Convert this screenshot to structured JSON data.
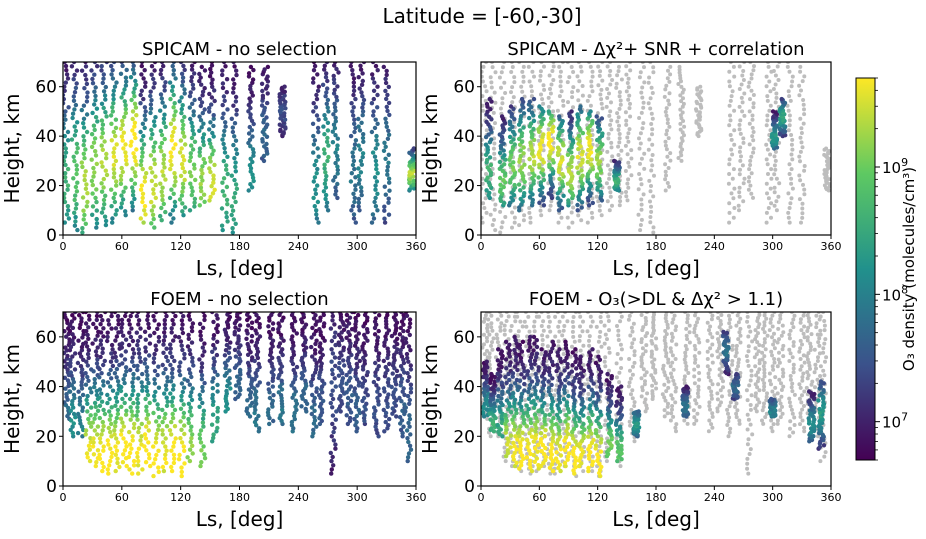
{
  "suptitle": "Latitude = [-60,-30]",
  "colorbar": {
    "label": "O₃ density (molecules/cm³)",
    "scale": "log",
    "range": [
      5000000.0,
      5000000000.0
    ],
    "tick_labels": [
      {
        "base": "10",
        "exp": "9",
        "value": 1000000000.0
      },
      {
        "base": "10",
        "exp": "8",
        "value": 100000000.0
      },
      {
        "base": "10",
        "exp": "7",
        "value": 10000000.0
      }
    ],
    "colormap": "viridis",
    "colors": [
      "#440154",
      "#3b528b",
      "#21918c",
      "#5ec962",
      "#fde725"
    ]
  },
  "chart_data": [
    {
      "type": "scatter",
      "title": "SPICAM - no selection",
      "xlabel": "Ls, [deg]",
      "ylabel": "Height, km",
      "xlim": [
        0,
        360
      ],
      "ylim": [
        0,
        70
      ],
      "xticks": [
        "0",
        "60",
        "120",
        "180",
        "240",
        "300",
        "360"
      ],
      "yticks": [
        "0",
        "20",
        "40",
        "60"
      ],
      "grey_points": false,
      "profiles": [
        {
          "ls": 3,
          "top": 70,
          "bottom": 5,
          "peak": 22,
          "level": 0.6
        },
        {
          "ls": 12,
          "top": 70,
          "bottom": 2,
          "peak": 25,
          "level": 0.7
        },
        {
          "ls": 22,
          "top": 70,
          "bottom": 1,
          "peak": 20,
          "level": 0.85
        },
        {
          "ls": 32,
          "top": 70,
          "bottom": 3,
          "peak": 28,
          "level": 0.8
        },
        {
          "ls": 42,
          "top": 70,
          "bottom": 4,
          "peak": 30,
          "level": 0.85
        },
        {
          "ls": 52,
          "top": 70,
          "bottom": 5,
          "peak": 32,
          "level": 0.9
        },
        {
          "ls": 62,
          "top": 70,
          "bottom": 8,
          "peak": 35,
          "level": 0.95
        },
        {
          "ls": 72,
          "top": 70,
          "bottom": 10,
          "peak": 38,
          "level": 1.0
        },
        {
          "ls": 82,
          "top": 70,
          "bottom": 5,
          "peak": 15,
          "level": 0.95
        },
        {
          "ls": 92,
          "top": 70,
          "bottom": 3,
          "peak": 20,
          "level": 0.9
        },
        {
          "ls": 102,
          "top": 70,
          "bottom": 6,
          "peak": 25,
          "level": 0.85
        },
        {
          "ls": 112,
          "top": 70,
          "bottom": 5,
          "peak": 35,
          "level": 0.95
        },
        {
          "ls": 122,
          "top": 70,
          "bottom": 8,
          "peak": 30,
          "level": 0.9
        },
        {
          "ls": 132,
          "top": 70,
          "bottom": 10,
          "peak": 25,
          "level": 0.75
        },
        {
          "ls": 142,
          "top": 68,
          "bottom": 12,
          "peak": 22,
          "level": 0.8
        },
        {
          "ls": 152,
          "top": 70,
          "bottom": 14,
          "peak": 20,
          "level": 0.9
        },
        {
          "ls": 165,
          "top": 70,
          "bottom": 2,
          "peak": 18,
          "level": 0.6
        },
        {
          "ls": 175,
          "top": 70,
          "bottom": 1,
          "peak": 15,
          "level": 0.55
        },
        {
          "ls": 192,
          "top": 68,
          "bottom": 18,
          "peak": 25,
          "level": 0.45
        },
        {
          "ls": 206,
          "top": 68,
          "bottom": 30,
          "peak": 40,
          "level": 0.3
        },
        {
          "ls": 224,
          "top": 60,
          "bottom": 40,
          "peak": 50,
          "level": 0.2
        },
        {
          "ls": 258,
          "top": 70,
          "bottom": 5,
          "peak": 20,
          "level": 0.45
        },
        {
          "ls": 268,
          "top": 70,
          "bottom": 10,
          "peak": 30,
          "level": 0.6
        },
        {
          "ls": 278,
          "top": 70,
          "bottom": 15,
          "peak": 35,
          "level": 0.4
        },
        {
          "ls": 296,
          "top": 70,
          "bottom": 5,
          "peak": 25,
          "level": 0.35
        },
        {
          "ls": 304,
          "top": 70,
          "bottom": 10,
          "peak": 30,
          "level": 0.4
        },
        {
          "ls": 318,
          "top": 70,
          "bottom": 5,
          "peak": 25,
          "level": 0.45
        },
        {
          "ls": 330,
          "top": 68,
          "bottom": 5,
          "peak": 30,
          "level": 0.35
        },
        {
          "ls": 356,
          "top": 35,
          "bottom": 18,
          "peak": 25,
          "level": 0.85
        }
      ]
    },
    {
      "type": "scatter",
      "title": "SPICAM - Δχ²+ SNR + correlation",
      "xlabel": "Ls, [deg]",
      "ylabel": "Height, km",
      "xlim": [
        0,
        360
      ],
      "ylim": [
        0,
        70
      ],
      "xticks": [
        "0",
        "60",
        "120",
        "180",
        "240",
        "300",
        "360"
      ],
      "yticks": [
        "0",
        "20",
        "40",
        "60"
      ],
      "grey_points": true,
      "profiles": [
        {
          "ls": 8,
          "top": 55,
          "bottom": 15,
          "peak": 25,
          "level": 0.6
        },
        {
          "ls": 22,
          "top": 48,
          "bottom": 12,
          "peak": 22,
          "level": 0.7
        },
        {
          "ls": 32,
          "top": 52,
          "bottom": 12,
          "peak": 28,
          "level": 0.75
        },
        {
          "ls": 42,
          "top": 55,
          "bottom": 10,
          "peak": 30,
          "level": 0.8
        },
        {
          "ls": 52,
          "top": 55,
          "bottom": 12,
          "peak": 32,
          "level": 0.85
        },
        {
          "ls": 62,
          "top": 52,
          "bottom": 12,
          "peak": 35,
          "level": 0.95
        },
        {
          "ls": 72,
          "top": 50,
          "bottom": 15,
          "peak": 38,
          "level": 1.0
        },
        {
          "ls": 82,
          "top": 48,
          "bottom": 10,
          "peak": 30,
          "level": 0.9
        },
        {
          "ls": 92,
          "top": 50,
          "bottom": 12,
          "peak": 25,
          "level": 0.85
        },
        {
          "ls": 102,
          "top": 52,
          "bottom": 10,
          "peak": 32,
          "level": 0.9
        },
        {
          "ls": 112,
          "top": 50,
          "bottom": 12,
          "peak": 35,
          "level": 0.95
        },
        {
          "ls": 122,
          "top": 48,
          "bottom": 14,
          "peak": 30,
          "level": 0.8
        },
        {
          "ls": 140,
          "top": 30,
          "bottom": 18,
          "peak": 22,
          "level": 0.6
        },
        {
          "ls": 302,
          "top": 50,
          "bottom": 35,
          "peak": 40,
          "level": 0.5
        },
        {
          "ls": 310,
          "top": 55,
          "bottom": 40,
          "peak": 48,
          "level": 0.55
        }
      ]
    },
    {
      "type": "scatter",
      "title": "FOEM - no selection",
      "xlabel": "Ls, [deg]",
      "ylabel": "Height, km",
      "xlim": [
        0,
        360
      ],
      "ylim": [
        0,
        70
      ],
      "xticks": [
        "0",
        "60",
        "120",
        "180",
        "240",
        "300",
        "360"
      ],
      "yticks": [
        "0",
        "20",
        "40",
        "60"
      ],
      "grey_points": false,
      "profiles": [
        {
          "ls": 4,
          "top": 70,
          "bottom": 27,
          "peak": 30,
          "level": 0.3
        },
        {
          "ls": 10,
          "top": 70,
          "bottom": 20,
          "peak": 25,
          "level": 0.45
        },
        {
          "ls": 18,
          "top": 70,
          "bottom": 20,
          "peak": 24,
          "level": 0.4
        },
        {
          "ls": 26,
          "top": 70,
          "bottom": 10,
          "peak": 12,
          "level": 0.95
        },
        {
          "ls": 33,
          "top": 70,
          "bottom": 8,
          "peak": 12,
          "level": 0.95
        },
        {
          "ls": 40,
          "top": 70,
          "bottom": 6,
          "peak": 10,
          "level": 1.0
        },
        {
          "ls": 48,
          "top": 70,
          "bottom": 5,
          "peak": 10,
          "level": 1.0
        },
        {
          "ls": 55,
          "top": 70,
          "bottom": 6,
          "peak": 12,
          "level": 0.95
        },
        {
          "ls": 62,
          "top": 70,
          "bottom": 8,
          "peak": 14,
          "level": 1.0
        },
        {
          "ls": 70,
          "top": 70,
          "bottom": 5,
          "peak": 12,
          "level": 1.0
        },
        {
          "ls": 78,
          "top": 70,
          "bottom": 5,
          "peak": 12,
          "level": 0.95
        },
        {
          "ls": 86,
          "top": 70,
          "bottom": 8,
          "peak": 14,
          "level": 1.0
        },
        {
          "ls": 95,
          "top": 70,
          "bottom": 4,
          "peak": 10,
          "level": 1.0
        },
        {
          "ls": 104,
          "top": 70,
          "bottom": 6,
          "peak": 12,
          "level": 0.95
        },
        {
          "ls": 112,
          "top": 70,
          "bottom": 6,
          "peak": 12,
          "level": 1.0
        },
        {
          "ls": 121,
          "top": 70,
          "bottom": 4,
          "peak": 10,
          "level": 1.0
        },
        {
          "ls": 130,
          "top": 70,
          "bottom": 10,
          "peak": 14,
          "level": 0.8
        },
        {
          "ls": 142,
          "top": 70,
          "bottom": 8,
          "peak": 12,
          "level": 0.75
        },
        {
          "ls": 155,
          "top": 70,
          "bottom": 18,
          "peak": 25,
          "level": 0.55
        },
        {
          "ls": 168,
          "top": 70,
          "bottom": 30,
          "peak": 35,
          "level": 0.45
        },
        {
          "ls": 178,
          "top": 70,
          "bottom": 35,
          "peak": 40,
          "level": 0.3
        },
        {
          "ls": 190,
          "top": 70,
          "bottom": 28,
          "peak": 32,
          "level": 0.3
        },
        {
          "ls": 198,
          "top": 70,
          "bottom": 22,
          "peak": 28,
          "level": 0.35
        },
        {
          "ls": 212,
          "top": 70,
          "bottom": 25,
          "peak": 30,
          "level": 0.3
        },
        {
          "ls": 222,
          "top": 70,
          "bottom": 25,
          "peak": 30,
          "level": 0.35
        },
        {
          "ls": 236,
          "top": 70,
          "bottom": 22,
          "peak": 28,
          "level": 0.35
        },
        {
          "ls": 246,
          "top": 70,
          "bottom": 30,
          "peak": 35,
          "level": 0.3
        },
        {
          "ls": 256,
          "top": 70,
          "bottom": 20,
          "peak": 25,
          "level": 0.3
        },
        {
          "ls": 264,
          "top": 70,
          "bottom": 25,
          "peak": 30,
          "level": 0.25
        },
        {
          "ls": 276,
          "top": 70,
          "bottom": 5,
          "peak": 40,
          "level": 0.2
        },
        {
          "ls": 284,
          "top": 70,
          "bottom": 30,
          "peak": 40,
          "level": 0.2
        },
        {
          "ls": 292,
          "top": 70,
          "bottom": 25,
          "peak": 35,
          "level": 0.25
        },
        {
          "ls": 300,
          "top": 70,
          "bottom": 22,
          "peak": 30,
          "level": 0.25
        },
        {
          "ls": 308,
          "top": 70,
          "bottom": 25,
          "peak": 32,
          "level": 0.2
        },
        {
          "ls": 320,
          "top": 70,
          "bottom": 20,
          "peak": 30,
          "level": 0.2
        },
        {
          "ls": 330,
          "top": 70,
          "bottom": 22,
          "peak": 32,
          "level": 0.2
        },
        {
          "ls": 338,
          "top": 70,
          "bottom": 28,
          "peak": 35,
          "level": 0.2
        },
        {
          "ls": 346,
          "top": 70,
          "bottom": 20,
          "peak": 30,
          "level": 0.25
        },
        {
          "ls": 352,
          "top": 70,
          "bottom": 10,
          "peak": 20,
          "level": 0.3
        }
      ]
    },
    {
      "type": "scatter",
      "title": "FOEM - O₃(>DL & Δχ² > 1.1)",
      "xlabel": "Ls, [deg]",
      "ylabel": "Height, km",
      "xlim": [
        0,
        360
      ],
      "ylim": [
        0,
        70
      ],
      "xticks": [
        "0",
        "60",
        "120",
        "180",
        "240",
        "300",
        "360"
      ],
      "yticks": [
        "0",
        "20",
        "40",
        "60"
      ],
      "grey_points": true,
      "profiles": [
        {
          "ls": 5,
          "top": 50,
          "bottom": 28,
          "peak": 32,
          "level": 0.45
        },
        {
          "ls": 12,
          "top": 45,
          "bottom": 22,
          "peak": 25,
          "level": 0.6
        },
        {
          "ls": 20,
          "top": 55,
          "bottom": 20,
          "peak": 24,
          "level": 0.55
        },
        {
          "ls": 28,
          "top": 58,
          "bottom": 12,
          "peak": 16,
          "level": 0.9
        },
        {
          "ls": 35,
          "top": 60,
          "bottom": 8,
          "peak": 14,
          "level": 0.95
        },
        {
          "ls": 42,
          "top": 58,
          "bottom": 7,
          "peak": 12,
          "level": 1.0
        },
        {
          "ls": 50,
          "top": 60,
          "bottom": 6,
          "peak": 12,
          "level": 1.0
        },
        {
          "ls": 57,
          "top": 60,
          "bottom": 7,
          "peak": 14,
          "level": 0.95
        },
        {
          "ls": 64,
          "top": 55,
          "bottom": 8,
          "peak": 14,
          "level": 1.0
        },
        {
          "ls": 72,
          "top": 58,
          "bottom": 6,
          "peak": 12,
          "level": 1.0
        },
        {
          "ls": 80,
          "top": 55,
          "bottom": 6,
          "peak": 12,
          "level": 0.95
        },
        {
          "ls": 88,
          "top": 58,
          "bottom": 8,
          "peak": 14,
          "level": 1.0
        },
        {
          "ls": 96,
          "top": 55,
          "bottom": 5,
          "peak": 10,
          "level": 1.0
        },
        {
          "ls": 104,
          "top": 52,
          "bottom": 8,
          "peak": 12,
          "level": 0.95
        },
        {
          "ls": 113,
          "top": 55,
          "bottom": 6,
          "peak": 12,
          "level": 1.0
        },
        {
          "ls": 121,
          "top": 52,
          "bottom": 4,
          "peak": 10,
          "level": 1.0
        },
        {
          "ls": 132,
          "top": 45,
          "bottom": 12,
          "peak": 16,
          "level": 0.75
        },
        {
          "ls": 142,
          "top": 40,
          "bottom": 10,
          "peak": 14,
          "level": 0.7
        },
        {
          "ls": 160,
          "top": 30,
          "bottom": 20,
          "peak": 25,
          "level": 0.5
        },
        {
          "ls": 210,
          "top": 40,
          "bottom": 28,
          "peak": 32,
          "level": 0.35
        },
        {
          "ls": 252,
          "top": 62,
          "bottom": 45,
          "peak": 55,
          "level": 0.35
        },
        {
          "ls": 262,
          "top": 45,
          "bottom": 35,
          "peak": 40,
          "level": 0.3
        },
        {
          "ls": 300,
          "top": 35,
          "bottom": 28,
          "peak": 30,
          "level": 0.4
        },
        {
          "ls": 340,
          "top": 38,
          "bottom": 18,
          "peak": 25,
          "level": 0.45
        },
        {
          "ls": 350,
          "top": 42,
          "bottom": 15,
          "peak": 30,
          "level": 0.5
        }
      ]
    }
  ]
}
